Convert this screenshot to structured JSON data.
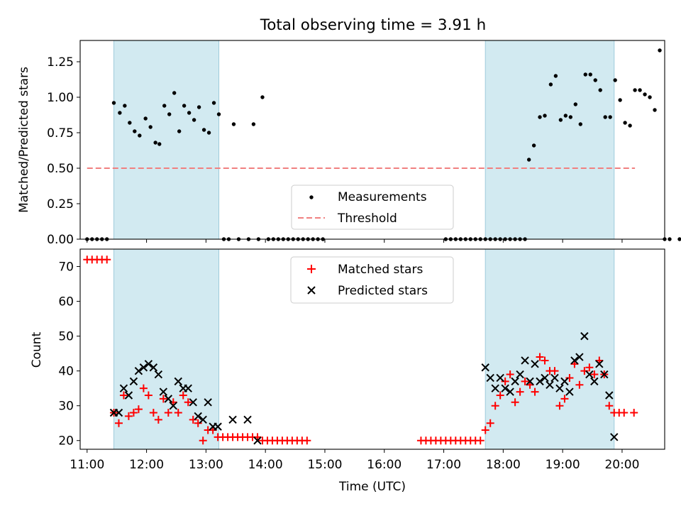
{
  "title": "Total observing time = 3.91 h",
  "colors": {
    "shade": "#add8e6",
    "threshold": "#f08080",
    "matched": "#ff0000",
    "predicted": "#000000",
    "measurements": "#000000"
  },
  "chart_data": [
    {
      "id": "ratio",
      "type": "scatter",
      "ylabel": "Matched/Predicted stars",
      "xlim": [
        "10:53",
        "20:43"
      ],
      "ylim": [
        0,
        1.4
      ],
      "yticks": [
        0,
        0.25,
        0.5,
        0.75,
        1.0,
        1.25
      ],
      "yticklabels": [
        "0.00",
        "0.25",
        "0.50",
        "0.75",
        "1.00",
        "1.25"
      ],
      "observing_windows": [
        [
          "11:27",
          "13:13"
        ],
        [
          "17:42",
          "19:52"
        ]
      ],
      "legend": {
        "placement": "lower-center",
        "entries": [
          "Measurements",
          "Threshold"
        ]
      },
      "threshold": {
        "name": "Threshold",
        "value": 0.5,
        "x_range": [
          "11:00",
          "20:13"
        ]
      },
      "series": [
        {
          "name": "Measurements",
          "marker": "dot",
          "points": [
            [
              "11:00",
              0
            ],
            [
              "11:05",
              0
            ],
            [
              "11:10",
              0
            ],
            [
              "11:15",
              0
            ],
            [
              "11:20",
              0
            ],
            [
              "11:27",
              0.96
            ],
            [
              "11:33",
              0.89
            ],
            [
              "11:38",
              0.94
            ],
            [
              "11:43",
              0.82
            ],
            [
              "11:48",
              0.76
            ],
            [
              "11:53",
              0.73
            ],
            [
              "11:59",
              0.85
            ],
            [
              "12:04",
              0.79
            ],
            [
              "12:09",
              0.68
            ],
            [
              "12:13",
              0.67
            ],
            [
              "12:18",
              0.94
            ],
            [
              "12:23",
              0.88
            ],
            [
              "12:28",
              1.03
            ],
            [
              "12:33",
              0.76
            ],
            [
              "12:38",
              0.94
            ],
            [
              "12:43",
              0.89
            ],
            [
              "12:48",
              0.84
            ],
            [
              "12:53",
              0.93
            ],
            [
              "12:58",
              0.77
            ],
            [
              "13:03",
              0.75
            ],
            [
              "13:08",
              0.96
            ],
            [
              "13:13",
              0.88
            ],
            [
              "13:18",
              0
            ],
            [
              "13:23",
              0
            ],
            [
              "13:28",
              0.81
            ],
            [
              "13:33",
              0
            ],
            [
              "13:43",
              0
            ],
            [
              "13:48",
              0.81
            ],
            [
              "13:53",
              0
            ],
            [
              "13:57",
              1.0
            ],
            [
              "14:03",
              0
            ],
            [
              "14:08",
              0
            ],
            [
              "14:13",
              0
            ],
            [
              "14:18",
              0
            ],
            [
              "14:23",
              0
            ],
            [
              "14:28",
              0
            ],
            [
              "14:33",
              0
            ],
            [
              "14:38",
              0
            ],
            [
              "14:43",
              0
            ],
            [
              "14:48",
              0
            ],
            [
              "14:53",
              0
            ],
            [
              "14:58",
              0
            ],
            [
              "17:02",
              0
            ],
            [
              "17:07",
              0
            ],
            [
              "17:12",
              0
            ],
            [
              "17:17",
              0
            ],
            [
              "17:22",
              0
            ],
            [
              "17:27",
              0
            ],
            [
              "17:32",
              0
            ],
            [
              "17:37",
              0
            ],
            [
              "17:42",
              0
            ],
            [
              "17:47",
              0
            ],
            [
              "17:52",
              0
            ],
            [
              "17:57",
              0
            ],
            [
              "18:02",
              0
            ],
            [
              "18:07",
              0
            ],
            [
              "18:12",
              0
            ],
            [
              "18:17",
              0
            ],
            [
              "18:22",
              0
            ],
            [
              "18:26",
              0.56
            ],
            [
              "18:31",
              0.66
            ],
            [
              "18:37",
              0.86
            ],
            [
              "18:42",
              0.87
            ],
            [
              "18:48",
              1.09
            ],
            [
              "18:53",
              1.15
            ],
            [
              "18:58",
              0.84
            ],
            [
              "19:03",
              0.87
            ],
            [
              "19:08",
              0.86
            ],
            [
              "19:13",
              0.95
            ],
            [
              "19:18",
              0.81
            ],
            [
              "19:23",
              1.16
            ],
            [
              "19:28",
              1.16
            ],
            [
              "19:33",
              1.12
            ],
            [
              "19:38",
              1.05
            ],
            [
              "19:43",
              0.86
            ],
            [
              "19:48",
              0.86
            ],
            [
              "19:53",
              1.12
            ],
            [
              "19:58",
              0.98
            ],
            [
              "20:03",
              0.82
            ],
            [
              "20:08",
              0.8
            ],
            [
              "20:13",
              1.05
            ],
            [
              "20:18",
              1.05
            ],
            [
              "20:23",
              1.02
            ],
            [
              "20:28",
              1.0
            ],
            [
              "20:33",
              0.91
            ],
            [
              "20:38",
              1.33
            ],
            [
              "20:43",
              0
            ],
            [
              "20:48",
              0
            ],
            [
              "20:58",
              0
            ]
          ]
        }
      ]
    },
    {
      "id": "counts",
      "type": "scatter",
      "ylabel": "Count",
      "xlabel": "Time (UTC)",
      "xlim": [
        "10:53",
        "20:43"
      ],
      "ylim": [
        17.5,
        75
      ],
      "yticks": [
        20,
        30,
        40,
        50,
        60,
        70
      ],
      "yticklabels": [
        "20",
        "30",
        "40",
        "50",
        "60",
        "70"
      ],
      "xticks": [
        "11:00",
        "12:00",
        "13:00",
        "14:00",
        "15:00",
        "16:00",
        "17:00",
        "18:00",
        "19:00",
        "20:00"
      ],
      "observing_windows": [
        [
          "11:27",
          "13:13"
        ],
        [
          "17:42",
          "19:52"
        ]
      ],
      "legend": {
        "placement": "upper-center",
        "entries": [
          "Matched stars",
          "Predicted stars"
        ]
      },
      "series": [
        {
          "name": "Matched stars",
          "marker": "plus",
          "points": [
            [
              "11:00",
              72
            ],
            [
              "11:05",
              72
            ],
            [
              "11:10",
              72
            ],
            [
              "11:15",
              72
            ],
            [
              "11:20",
              72
            ],
            [
              "11:27",
              28
            ],
            [
              "11:32",
              25
            ],
            [
              "11:37",
              33
            ],
            [
              "11:42",
              27
            ],
            [
              "11:47",
              28
            ],
            [
              "11:52",
              29
            ],
            [
              "11:57",
              35
            ],
            [
              "12:02",
              33
            ],
            [
              "12:07",
              28
            ],
            [
              "12:12",
              26
            ],
            [
              "12:17",
              32
            ],
            [
              "12:22",
              28
            ],
            [
              "12:27",
              31
            ],
            [
              "12:32",
              28
            ],
            [
              "12:37",
              33
            ],
            [
              "12:42",
              31
            ],
            [
              "12:47",
              26
            ],
            [
              "12:52",
              25
            ],
            [
              "12:57",
              20
            ],
            [
              "13:02",
              23
            ],
            [
              "13:07",
              23
            ],
            [
              "13:12",
              21
            ],
            [
              "13:17",
              21
            ],
            [
              "13:22",
              21
            ],
            [
              "13:27",
              21
            ],
            [
              "13:32",
              21
            ],
            [
              "13:37",
              21
            ],
            [
              "13:42",
              21
            ],
            [
              "13:47",
              21
            ],
            [
              "13:52",
              21
            ],
            [
              "13:57",
              20
            ],
            [
              "14:02",
              20
            ],
            [
              "14:07",
              20
            ],
            [
              "14:12",
              20
            ],
            [
              "14:17",
              20
            ],
            [
              "14:22",
              20
            ],
            [
              "14:27",
              20
            ],
            [
              "14:32",
              20
            ],
            [
              "14:37",
              20
            ],
            [
              "14:42",
              20
            ],
            [
              "16:37",
              20
            ],
            [
              "16:42",
              20
            ],
            [
              "16:47",
              20
            ],
            [
              "16:52",
              20
            ],
            [
              "16:57",
              20
            ],
            [
              "17:02",
              20
            ],
            [
              "17:07",
              20
            ],
            [
              "17:12",
              20
            ],
            [
              "17:17",
              20
            ],
            [
              "17:22",
              20
            ],
            [
              "17:27",
              20
            ],
            [
              "17:32",
              20
            ],
            [
              "17:37",
              20
            ],
            [
              "17:42",
              23
            ],
            [
              "17:47",
              25
            ],
            [
              "17:52",
              30
            ],
            [
              "17:57",
              33
            ],
            [
              "18:02",
              37
            ],
            [
              "18:07",
              39
            ],
            [
              "18:12",
              31
            ],
            [
              "18:17",
              34
            ],
            [
              "18:22",
              37
            ],
            [
              "18:27",
              36
            ],
            [
              "18:32",
              34
            ],
            [
              "18:37",
              44
            ],
            [
              "18:42",
              43
            ],
            [
              "18:47",
              40
            ],
            [
              "18:52",
              40
            ],
            [
              "18:57",
              30
            ],
            [
              "19:02",
              32
            ],
            [
              "19:07",
              38
            ],
            [
              "19:12",
              42
            ],
            [
              "19:17",
              36
            ],
            [
              "19:22",
              40
            ],
            [
              "19:27",
              41
            ],
            [
              "19:32",
              39
            ],
            [
              "19:37",
              43
            ],
            [
              "19:42",
              39
            ],
            [
              "19:47",
              30
            ],
            [
              "19:52",
              28
            ],
            [
              "19:57",
              28
            ],
            [
              "20:02",
              28
            ],
            [
              "20:12",
              28
            ]
          ]
        },
        {
          "name": "Predicted stars",
          "marker": "x",
          "points": [
            [
              "11:27",
              28
            ],
            [
              "11:32",
              28
            ],
            [
              "11:37",
              35
            ],
            [
              "11:42",
              33
            ],
            [
              "11:47",
              37
            ],
            [
              "11:52",
              40
            ],
            [
              "11:57",
              41
            ],
            [
              "12:02",
              42
            ],
            [
              "12:07",
              41
            ],
            [
              "12:12",
              39
            ],
            [
              "12:17",
              34
            ],
            [
              "12:22",
              32
            ],
            [
              "12:27",
              30
            ],
            [
              "12:32",
              37
            ],
            [
              "12:37",
              35
            ],
            [
              "12:42",
              35
            ],
            [
              "12:47",
              31
            ],
            [
              "12:52",
              27
            ],
            [
              "12:57",
              26
            ],
            [
              "13:02",
              31
            ],
            [
              "13:07",
              24
            ],
            [
              "13:12",
              24
            ],
            [
              "13:27",
              26
            ],
            [
              "13:42",
              26
            ],
            [
              "13:52",
              20
            ],
            [
              "17:42",
              41
            ],
            [
              "17:47",
              38
            ],
            [
              "17:52",
              35
            ],
            [
              "17:57",
              38
            ],
            [
              "18:02",
              35
            ],
            [
              "18:07",
              34
            ],
            [
              "18:12",
              37
            ],
            [
              "18:17",
              39
            ],
            [
              "18:22",
              43
            ],
            [
              "18:27",
              37
            ],
            [
              "18:32",
              42
            ],
            [
              "18:37",
              37
            ],
            [
              "18:42",
              38
            ],
            [
              "18:47",
              36
            ],
            [
              "18:52",
              38
            ],
            [
              "18:57",
              35
            ],
            [
              "19:02",
              37
            ],
            [
              "19:07",
              34
            ],
            [
              "19:12",
              43
            ],
            [
              "19:17",
              44
            ],
            [
              "19:22",
              50
            ],
            [
              "19:27",
              39
            ],
            [
              "19:32",
              37
            ],
            [
              "19:37",
              42
            ],
            [
              "19:42",
              39
            ],
            [
              "19:47",
              33
            ],
            [
              "19:52",
              21
            ]
          ]
        }
      ]
    }
  ]
}
